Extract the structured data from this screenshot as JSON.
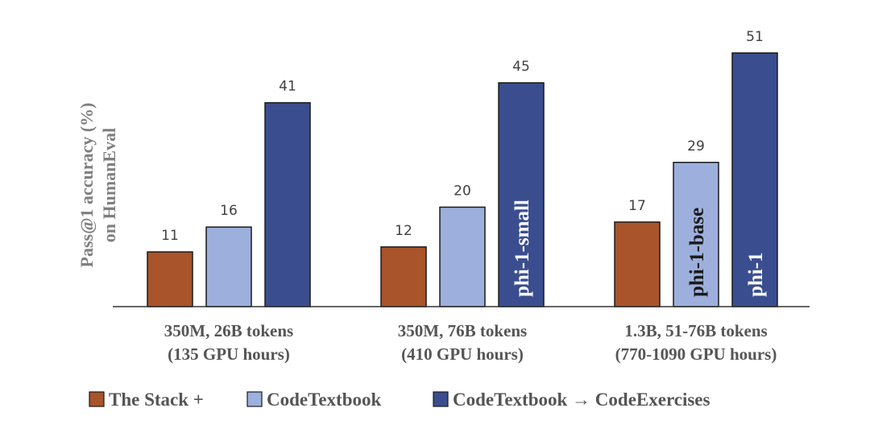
{
  "chart_data": {
    "type": "bar",
    "title": "",
    "xlabel": "",
    "ylabel": [
      "Pass@1 accuracy (%)",
      "on HumanEval"
    ],
    "ylim": [
      0,
      55
    ],
    "grid": false,
    "legend_position": "bottom",
    "categories": [
      {
        "line1": "350M, 26B tokens",
        "line2": "(135 GPU hours)"
      },
      {
        "line1": "350M, 76B tokens",
        "line2": "(410 GPU hours)"
      },
      {
        "line1": "1.3B, 51-76B tokens",
        "line2": "(770-1090 GPU hours)"
      }
    ],
    "series": [
      {
        "name": "The Stack +",
        "color": "#a9542a",
        "values": [
          11,
          12,
          17
        ]
      },
      {
        "name": "CodeTextbook",
        "color": "#9dafdc",
        "values": [
          16,
          20,
          29
        ]
      },
      {
        "name": "CodeTextbook → CodeExercises",
        "color": "#3a4e8f",
        "values": [
          41,
          45,
          51
        ]
      }
    ],
    "bar_annotations": [
      {
        "series": 2,
        "category": 1,
        "text": "phi-1-small",
        "color": "#ffffff"
      },
      {
        "series": 1,
        "category": 2,
        "text": "phi-1-base",
        "color": "#1a1a1a"
      },
      {
        "series": 2,
        "category": 2,
        "text": "phi-1",
        "color": "#ffffff"
      }
    ]
  }
}
